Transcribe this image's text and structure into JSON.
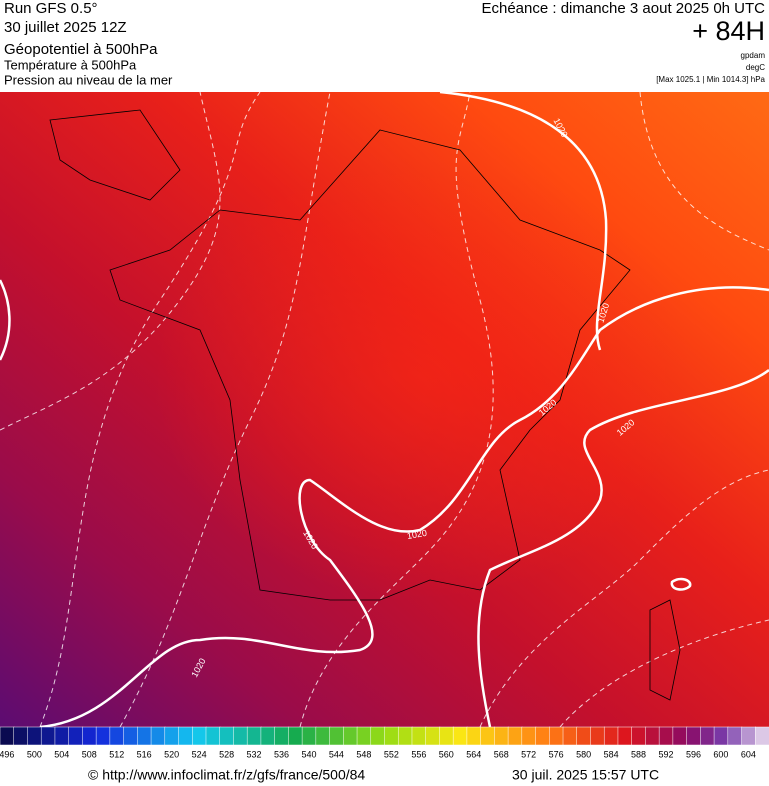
{
  "header": {
    "title": "Run GFS 0.5°",
    "run": "30 juillet 2025 12Z",
    "layers": [
      "Géopotentiel à 500hPa",
      "Température à 500hPa",
      "Pression au niveau de la mer"
    ],
    "valid": "Echéance : dimanche 3 aout 2025 0h UTC",
    "lead": "+ 84H",
    "units": [
      "gpdam",
      "degC"
    ],
    "range": "[Max 1025.1 | Min 1014.3] hPa"
  },
  "contour_labels": [
    "1020",
    "1020",
    "1020",
    "1020",
    "1020",
    "1020",
    "1020"
  ],
  "legend": {
    "labels": [
      496,
      500,
      504,
      508,
      512,
      516,
      520,
      524,
      528,
      532,
      536,
      540,
      544,
      548,
      552,
      556,
      560,
      564,
      568,
      572,
      576,
      580,
      584,
      588,
      592,
      596,
      600,
      604
    ]
  },
  "footer": {
    "source": "© http://www.infoclimat.fr/z/gfs/france/500/84",
    "generated": "30 juil. 2025 15:57 UTC"
  }
}
